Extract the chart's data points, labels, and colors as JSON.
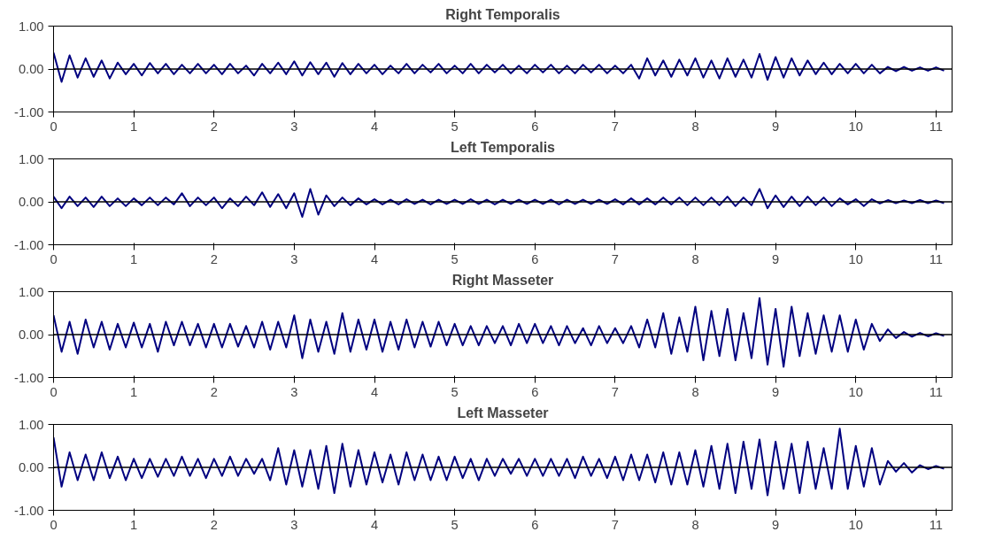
{
  "chart_data": [
    {
      "type": "line",
      "title": "Right Temporalis",
      "color": "#000080",
      "xlim": [
        0,
        11.2
      ],
      "xticks": [
        0,
        1,
        2,
        3,
        4,
        5,
        6,
        7,
        8,
        9,
        10,
        11
      ],
      "ylim": [
        -1,
        1
      ],
      "yticks": [
        {
          "value": -1,
          "label": "-1.00"
        },
        {
          "value": 0,
          "label": "0.00"
        },
        {
          "value": 1,
          "label": "1.00"
        }
      ],
      "ref_lines": [
        {
          "axis": "y",
          "value": 0,
          "color": "#000000"
        }
      ],
      "grid": false,
      "x": [
        0.0,
        0.1,
        0.2,
        0.3,
        0.4,
        0.5,
        0.6,
        0.7,
        0.8,
        0.9,
        1.0,
        1.1,
        1.2,
        1.3,
        1.4,
        1.5,
        1.6,
        1.7,
        1.8,
        1.9,
        2.0,
        2.1,
        2.2,
        2.3,
        2.4,
        2.5,
        2.6,
        2.7,
        2.8,
        2.9,
        3.0,
        3.1,
        3.2,
        3.3,
        3.4,
        3.5,
        3.6,
        3.7,
        3.8,
        3.9,
        4.0,
        4.1,
        4.2,
        4.3,
        4.4,
        4.5,
        4.6,
        4.7,
        4.8,
        4.9,
        5.0,
        5.1,
        5.2,
        5.3,
        5.4,
        5.5,
        5.6,
        5.7,
        5.8,
        5.9,
        6.0,
        6.1,
        6.2,
        6.3,
        6.4,
        6.5,
        6.6,
        6.7,
        6.8,
        6.9,
        7.0,
        7.1,
        7.2,
        7.3,
        7.4,
        7.5,
        7.6,
        7.7,
        7.8,
        7.9,
        8.0,
        8.1,
        8.2,
        8.3,
        8.4,
        8.5,
        8.6,
        8.7,
        8.8,
        8.9,
        9.0,
        9.1,
        9.2,
        9.3,
        9.4,
        9.5,
        9.6,
        9.7,
        9.8,
        9.9,
        10.0,
        10.1,
        10.2,
        10.3,
        10.4,
        10.5,
        10.6,
        10.7,
        10.8,
        10.9,
        11.0,
        11.1
      ],
      "values": [
        0.38,
        -0.3,
        0.32,
        -0.2,
        0.25,
        -0.18,
        0.2,
        -0.22,
        0.15,
        -0.12,
        0.12,
        -0.15,
        0.14,
        -0.1,
        0.12,
        -0.12,
        0.1,
        -0.1,
        0.12,
        -0.1,
        0.1,
        -0.12,
        0.12,
        -0.1,
        0.08,
        -0.15,
        0.12,
        -0.1,
        0.15,
        -0.12,
        0.18,
        -0.15,
        0.16,
        -0.12,
        0.15,
        -0.18,
        0.14,
        -0.12,
        0.12,
        -0.1,
        0.1,
        -0.12,
        0.08,
        -0.1,
        0.12,
        -0.1,
        0.1,
        -0.08,
        0.12,
        -0.1,
        0.08,
        -0.1,
        0.12,
        -0.1,
        0.1,
        -0.08,
        0.1,
        -0.1,
        0.08,
        -0.1,
        0.1,
        -0.08,
        0.1,
        -0.1,
        0.08,
        -0.1,
        0.1,
        -0.08,
        0.1,
        -0.1,
        0.08,
        -0.1,
        0.1,
        -0.22,
        0.25,
        -0.15,
        0.2,
        -0.18,
        0.22,
        -0.15,
        0.25,
        -0.2,
        0.2,
        -0.22,
        0.25,
        -0.18,
        0.22,
        -0.2,
        0.35,
        -0.25,
        0.28,
        -0.2,
        0.25,
        -0.15,
        0.2,
        -0.12,
        0.15,
        -0.12,
        0.12,
        -0.1,
        0.12,
        -0.1,
        0.1,
        -0.1,
        0.05,
        -0.05,
        0.05,
        -0.04,
        0.04,
        -0.04,
        0.04,
        -0.04
      ]
    },
    {
      "type": "line",
      "title": "Left Temporalis",
      "color": "#000080",
      "xlim": [
        0,
        11.2
      ],
      "xticks": [
        0,
        1,
        2,
        3,
        4,
        5,
        6,
        7,
        8,
        9,
        10,
        11
      ],
      "ylim": [
        -1,
        1
      ],
      "yticks": [
        {
          "value": -1,
          "label": "-1.00"
        },
        {
          "value": 0,
          "label": "0.00"
        },
        {
          "value": 1,
          "label": "1.00"
        }
      ],
      "ref_lines": [
        {
          "axis": "y",
          "value": 0,
          "color": "#000000"
        }
      ],
      "grid": false,
      "x": [
        0.0,
        0.1,
        0.2,
        0.3,
        0.4,
        0.5,
        0.6,
        0.7,
        0.8,
        0.9,
        1.0,
        1.1,
        1.2,
        1.3,
        1.4,
        1.5,
        1.6,
        1.7,
        1.8,
        1.9,
        2.0,
        2.1,
        2.2,
        2.3,
        2.4,
        2.5,
        2.6,
        2.7,
        2.8,
        2.9,
        3.0,
        3.1,
        3.2,
        3.3,
        3.4,
        3.5,
        3.6,
        3.7,
        3.8,
        3.9,
        4.0,
        4.1,
        4.2,
        4.3,
        4.4,
        4.5,
        4.6,
        4.7,
        4.8,
        4.9,
        5.0,
        5.1,
        5.2,
        5.3,
        5.4,
        5.5,
        5.6,
        5.7,
        5.8,
        5.9,
        6.0,
        6.1,
        6.2,
        6.3,
        6.4,
        6.5,
        6.6,
        6.7,
        6.8,
        6.9,
        7.0,
        7.1,
        7.2,
        7.3,
        7.4,
        7.5,
        7.6,
        7.7,
        7.8,
        7.9,
        8.0,
        8.1,
        8.2,
        8.3,
        8.4,
        8.5,
        8.6,
        8.7,
        8.8,
        8.9,
        9.0,
        9.1,
        9.2,
        9.3,
        9.4,
        9.5,
        9.6,
        9.7,
        9.8,
        9.9,
        10.0,
        10.1,
        10.2,
        10.3,
        10.4,
        10.5,
        10.6,
        10.7,
        10.8,
        10.9,
        11.0,
        11.1
      ],
      "values": [
        0.12,
        -0.15,
        0.12,
        -0.1,
        0.1,
        -0.12,
        0.12,
        -0.1,
        0.08,
        -0.1,
        0.08,
        -0.08,
        0.1,
        -0.08,
        0.1,
        -0.06,
        0.2,
        -0.1,
        0.1,
        -0.08,
        0.1,
        -0.15,
        0.08,
        -0.1,
        0.12,
        -0.08,
        0.22,
        -0.12,
        0.18,
        -0.15,
        0.2,
        -0.35,
        0.3,
        -0.3,
        0.15,
        -0.1,
        0.1,
        -0.08,
        0.08,
        -0.06,
        0.06,
        -0.06,
        0.05,
        -0.06,
        0.06,
        -0.05,
        0.05,
        -0.06,
        0.05,
        -0.05,
        0.05,
        -0.05,
        0.06,
        -0.05,
        0.05,
        -0.06,
        0.05,
        -0.05,
        0.05,
        -0.05,
        0.05,
        -0.05,
        0.05,
        -0.06,
        0.05,
        -0.05,
        0.05,
        -0.05,
        0.05,
        -0.05,
        0.06,
        -0.06,
        0.08,
        -0.06,
        0.08,
        -0.06,
        0.1,
        -0.06,
        0.1,
        -0.08,
        0.1,
        -0.08,
        0.1,
        -0.08,
        0.12,
        -0.1,
        0.1,
        -0.08,
        0.3,
        -0.15,
        0.15,
        -0.12,
        0.12,
        -0.1,
        0.12,
        -0.08,
        0.1,
        -0.1,
        0.08,
        -0.06,
        0.06,
        -0.1,
        0.06,
        -0.04,
        0.04,
        -0.03,
        0.03,
        -0.03,
        0.04,
        -0.03,
        0.03,
        -0.03
      ]
    },
    {
      "type": "line",
      "title": "Right Masseter",
      "color": "#000080",
      "xlim": [
        0,
        11.2
      ],
      "xticks": [
        0,
        1,
        2,
        3,
        4,
        5,
        6,
        7,
        8,
        9,
        10,
        11
      ],
      "ylim": [
        -1,
        1
      ],
      "yticks": [
        {
          "value": -1,
          "label": "-1.00"
        },
        {
          "value": 0,
          "label": "0.00"
        },
        {
          "value": 1,
          "label": "1.00"
        }
      ],
      "ref_lines": [
        {
          "axis": "y",
          "value": 0,
          "color": "#000000"
        }
      ],
      "grid": false,
      "x": [
        0.0,
        0.1,
        0.2,
        0.3,
        0.4,
        0.5,
        0.6,
        0.7,
        0.8,
        0.9,
        1.0,
        1.1,
        1.2,
        1.3,
        1.4,
        1.5,
        1.6,
        1.7,
        1.8,
        1.9,
        2.0,
        2.1,
        2.2,
        2.3,
        2.4,
        2.5,
        2.6,
        2.7,
        2.8,
        2.9,
        3.0,
        3.1,
        3.2,
        3.3,
        3.4,
        3.5,
        3.6,
        3.7,
        3.8,
        3.9,
        4.0,
        4.1,
        4.2,
        4.3,
        4.4,
        4.5,
        4.6,
        4.7,
        4.8,
        4.9,
        5.0,
        5.1,
        5.2,
        5.3,
        5.4,
        5.5,
        5.6,
        5.7,
        5.8,
        5.9,
        6.0,
        6.1,
        6.2,
        6.3,
        6.4,
        6.5,
        6.6,
        6.7,
        6.8,
        6.9,
        7.0,
        7.1,
        7.2,
        7.3,
        7.4,
        7.5,
        7.6,
        7.7,
        7.8,
        7.9,
        8.0,
        8.1,
        8.2,
        8.3,
        8.4,
        8.5,
        8.6,
        8.7,
        8.8,
        8.9,
        9.0,
        9.1,
        9.2,
        9.3,
        9.4,
        9.5,
        9.6,
        9.7,
        9.8,
        9.9,
        10.0,
        10.1,
        10.2,
        10.3,
        10.4,
        10.5,
        10.6,
        10.7,
        10.8,
        10.9,
        11.0,
        11.1
      ],
      "values": [
        0.45,
        -0.4,
        0.3,
        -0.45,
        0.35,
        -0.3,
        0.3,
        -0.35,
        0.25,
        -0.3,
        0.28,
        -0.3,
        0.25,
        -0.4,
        0.3,
        -0.25,
        0.3,
        -0.25,
        0.25,
        -0.3,
        0.25,
        -0.3,
        0.25,
        -0.28,
        0.2,
        -0.3,
        0.3,
        -0.35,
        0.3,
        -0.3,
        0.45,
        -0.55,
        0.35,
        -0.4,
        0.3,
        -0.45,
        0.5,
        -0.4,
        0.35,
        -0.35,
        0.35,
        -0.4,
        0.3,
        -0.35,
        0.35,
        -0.3,
        0.3,
        -0.28,
        0.3,
        -0.25,
        0.25,
        -0.25,
        0.2,
        -0.25,
        0.2,
        -0.2,
        0.2,
        -0.25,
        0.25,
        -0.2,
        0.25,
        -0.2,
        0.2,
        -0.25,
        0.2,
        -0.2,
        0.15,
        -0.25,
        0.2,
        -0.2,
        0.15,
        -0.2,
        0.2,
        -0.3,
        0.35,
        -0.3,
        0.5,
        -0.45,
        0.4,
        -0.4,
        0.65,
        -0.6,
        0.55,
        -0.5,
        0.6,
        -0.6,
        0.5,
        -0.55,
        0.85,
        -0.7,
        0.6,
        -0.75,
        0.65,
        -0.5,
        0.5,
        -0.45,
        0.45,
        -0.4,
        0.45,
        -0.4,
        0.35,
        -0.35,
        0.25,
        -0.15,
        0.12,
        -0.08,
        0.06,
        -0.05,
        0.04,
        -0.04,
        0.03,
        -0.03
      ]
    },
    {
      "type": "line",
      "title": "Left Masseter",
      "color": "#000080",
      "xlim": [
        0,
        11.2
      ],
      "xticks": [
        0,
        1,
        2,
        3,
        4,
        5,
        6,
        7,
        8,
        9,
        10,
        11
      ],
      "ylim": [
        -1,
        1
      ],
      "yticks": [
        {
          "value": -1,
          "label": "-1.00"
        },
        {
          "value": 0,
          "label": "0.00"
        },
        {
          "value": 1,
          "label": "1.00"
        }
      ],
      "ref_lines": [
        {
          "axis": "y",
          "value": 0,
          "color": "#000000"
        }
      ],
      "grid": false,
      "x": [
        0.0,
        0.1,
        0.2,
        0.3,
        0.4,
        0.5,
        0.6,
        0.7,
        0.8,
        0.9,
        1.0,
        1.1,
        1.2,
        1.3,
        1.4,
        1.5,
        1.6,
        1.7,
        1.8,
        1.9,
        2.0,
        2.1,
        2.2,
        2.3,
        2.4,
        2.5,
        2.6,
        2.7,
        2.8,
        2.9,
        3.0,
        3.1,
        3.2,
        3.3,
        3.4,
        3.5,
        3.6,
        3.7,
        3.8,
        3.9,
        4.0,
        4.1,
        4.2,
        4.3,
        4.4,
        4.5,
        4.6,
        4.7,
        4.8,
        4.9,
        5.0,
        5.1,
        5.2,
        5.3,
        5.4,
        5.5,
        5.6,
        5.7,
        5.8,
        5.9,
        6.0,
        6.1,
        6.2,
        6.3,
        6.4,
        6.5,
        6.6,
        6.7,
        6.8,
        6.9,
        7.0,
        7.1,
        7.2,
        7.3,
        7.4,
        7.5,
        7.6,
        7.7,
        7.8,
        7.9,
        8.0,
        8.1,
        8.2,
        8.3,
        8.4,
        8.5,
        8.6,
        8.7,
        8.8,
        8.9,
        9.0,
        9.1,
        9.2,
        9.3,
        9.4,
        9.5,
        9.6,
        9.7,
        9.8,
        9.9,
        10.0,
        10.1,
        10.2,
        10.3,
        10.4,
        10.5,
        10.6,
        10.7,
        10.8,
        10.9,
        11.0,
        11.1
      ],
      "values": [
        0.7,
        -0.45,
        0.35,
        -0.3,
        0.3,
        -0.3,
        0.35,
        -0.25,
        0.25,
        -0.3,
        0.2,
        -0.25,
        0.2,
        -0.22,
        0.2,
        -0.2,
        0.25,
        -0.2,
        0.2,
        -0.25,
        0.2,
        -0.2,
        0.25,
        -0.2,
        0.2,
        -0.15,
        0.2,
        -0.3,
        0.45,
        -0.4,
        0.4,
        -0.45,
        0.4,
        -0.5,
        0.5,
        -0.6,
        0.55,
        -0.45,
        0.4,
        -0.4,
        0.35,
        -0.35,
        0.3,
        -0.4,
        0.35,
        -0.3,
        0.3,
        -0.3,
        0.25,
        -0.3,
        0.25,
        -0.25,
        0.2,
        -0.3,
        0.2,
        -0.2,
        0.2,
        -0.15,
        0.2,
        -0.2,
        0.2,
        -0.2,
        0.2,
        -0.2,
        0.2,
        -0.25,
        0.25,
        -0.2,
        0.2,
        -0.25,
        0.25,
        -0.3,
        0.3,
        -0.3,
        0.3,
        -0.35,
        0.35,
        -0.4,
        0.35,
        -0.4,
        0.4,
        -0.45,
        0.5,
        -0.5,
        0.55,
        -0.6,
        0.6,
        -0.5,
        0.65,
        -0.65,
        0.6,
        -0.5,
        0.55,
        -0.6,
        0.6,
        -0.5,
        0.45,
        -0.5,
        0.9,
        -0.5,
        0.5,
        -0.45,
        0.45,
        -0.4,
        0.15,
        -0.1,
        0.1,
        -0.12,
        0.05,
        -0.04,
        0.03,
        -0.03
      ]
    }
  ]
}
